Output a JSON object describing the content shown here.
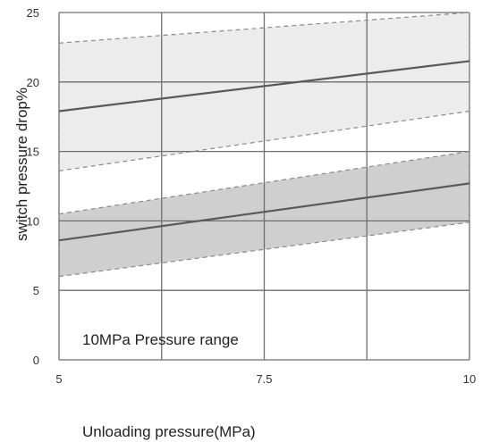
{
  "chart_data": {
    "type": "area",
    "xlabel": "Unloading pressure(MPa)",
    "ylabel": "switch pressure drop%",
    "xlim": [
      5,
      10
    ],
    "ylim": [
      0,
      25
    ],
    "x_ticks": [
      5,
      7.5,
      10
    ],
    "x_tick_labels": [
      "5",
      "7.5",
      "10"
    ],
    "y_ticks": [
      0,
      5,
      10,
      15,
      20,
      25
    ],
    "y_tick_labels": [
      "0",
      "5",
      "10",
      "15",
      "20",
      "25"
    ],
    "x_gridlines": [
      5,
      6.25,
      7.5,
      8.75,
      10
    ],
    "y_gridlines": [
      0,
      5,
      10,
      15,
      20,
      25
    ],
    "grid": true,
    "annotation": "10MPa Pressure range",
    "bands": [
      {
        "x": [
          5,
          10
        ],
        "upper": [
          22.8,
          25.0
        ],
        "center": [
          17.9,
          21.5
        ],
        "lower": [
          13.6,
          17.9
        ],
        "fill": "#ececec"
      },
      {
        "x": [
          5,
          10
        ],
        "upper": [
          10.5,
          15.0
        ],
        "center": [
          8.6,
          12.7
        ],
        "lower": [
          6.0,
          9.9
        ],
        "fill": "#cfcfcf"
      }
    ],
    "colors": {
      "grid": "#6e6e6e",
      "center_line": "#5a5a5a",
      "bound_line": "#8a8a8a"
    }
  }
}
